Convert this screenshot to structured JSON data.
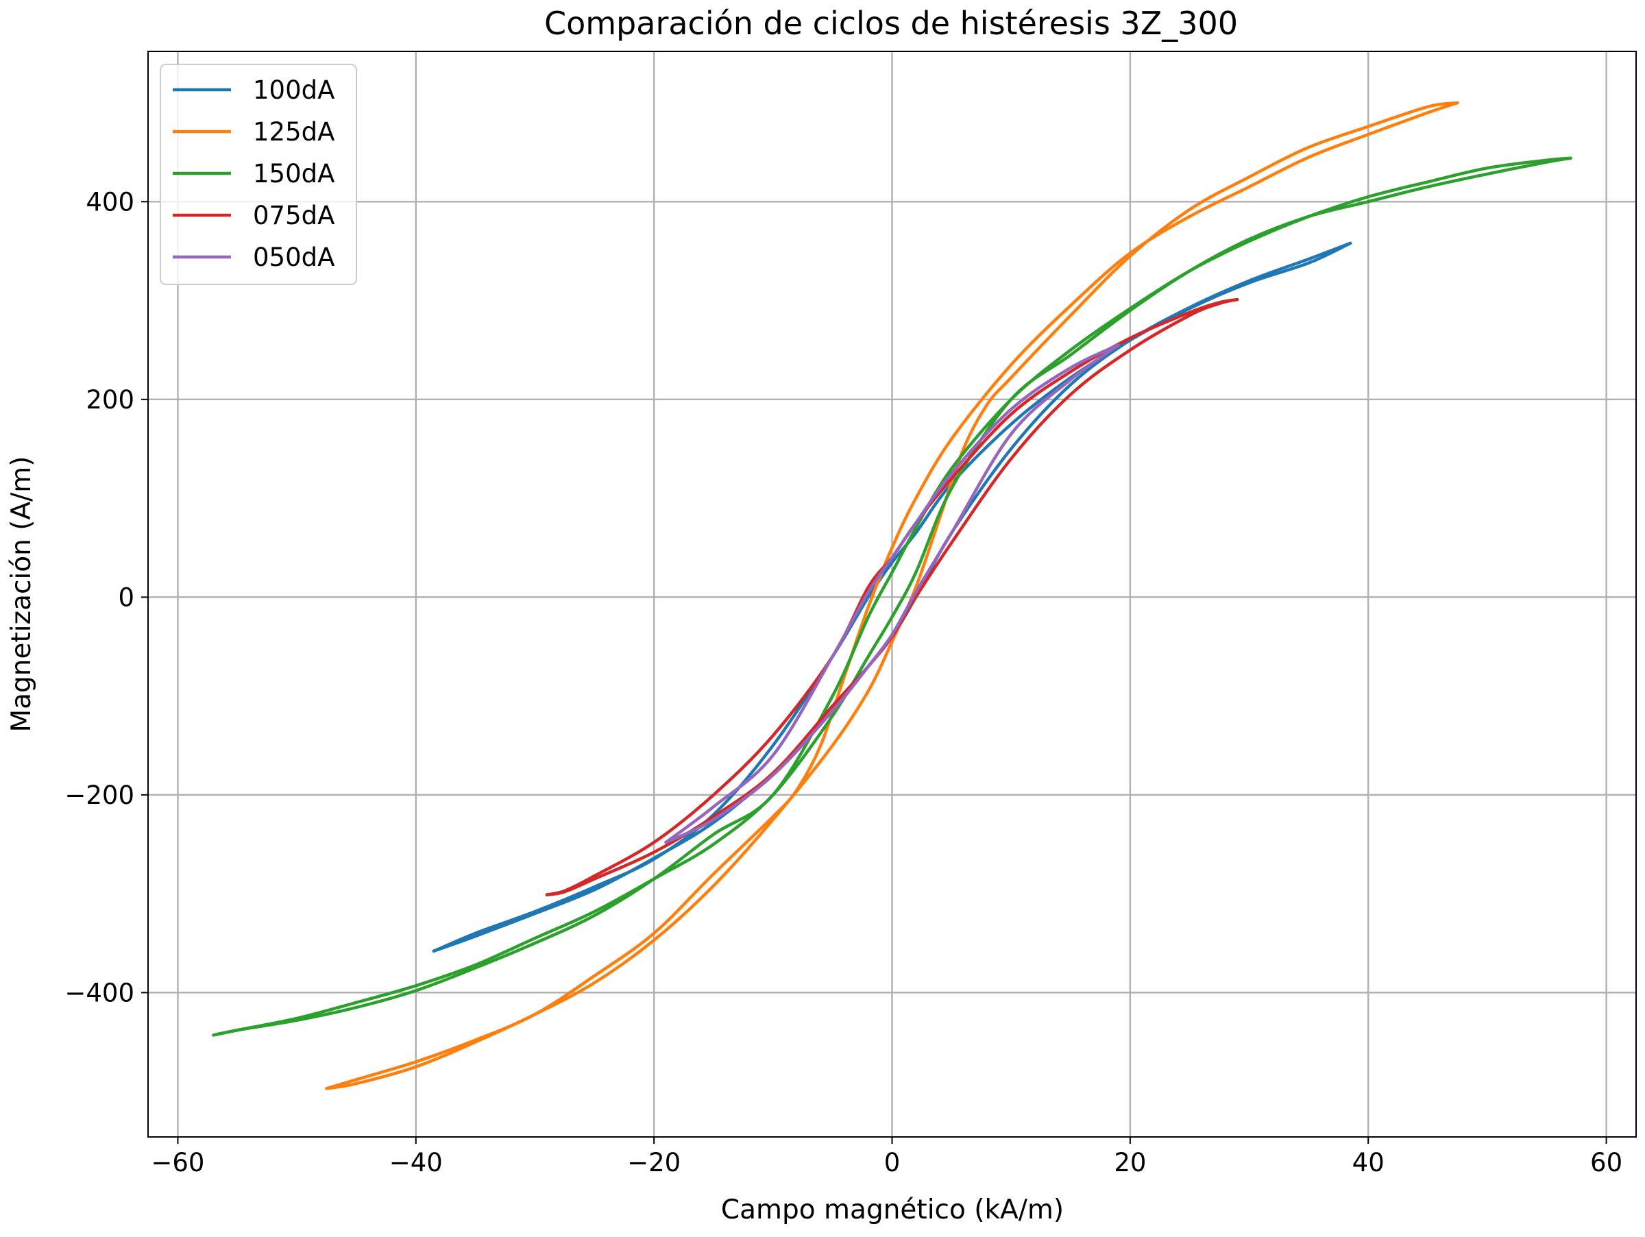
{
  "chart_data": {
    "type": "line",
    "title": "Comparación de ciclos de histéresis 3Z_300",
    "xlabel": "Campo magnético (kA/m)",
    "ylabel": "Magnetización (A/m)",
    "xlim": [
      -62.5,
      62.5
    ],
    "ylim": [
      -546,
      552
    ],
    "xticks": [
      -60,
      -40,
      -20,
      0,
      20,
      40,
      60
    ],
    "yticks": [
      -400,
      -200,
      0,
      200,
      400
    ],
    "grid": true,
    "legend_position": "upper left",
    "series": [
      {
        "name": "100dA",
        "color": "#1f77b4",
        "upper": {
          "x": [
            38.5,
            35,
            30,
            25,
            20,
            15,
            10,
            5,
            2,
            0,
            -2,
            -5,
            -10,
            -15,
            -20,
            -25,
            -30,
            -35,
            -38.5
          ],
          "y": [
            358,
            338,
            318,
            292,
            260,
            222,
            175,
            115,
            65,
            35,
            0,
            -60,
            -150,
            -220,
            -265,
            -293,
            -318,
            -340,
            -358
          ]
        },
        "lower": {
          "x": [
            -38.5,
            -35,
            -30,
            -25,
            -20,
            -15,
            -10,
            -5,
            -2,
            0,
            2,
            5,
            10,
            15,
            20,
            25,
            30,
            35,
            38.5
          ],
          "y": [
            -358,
            -343,
            -320,
            -296,
            -264,
            -228,
            -178,
            -115,
            -70,
            -40,
            0,
            65,
            150,
            215,
            260,
            293,
            320,
            342,
            358
          ]
        }
      },
      {
        "name": "125dA",
        "color": "#ff7f0e",
        "upper": {
          "x": [
            47.5,
            45,
            40,
            35,
            30,
            25,
            20,
            15,
            10,
            5,
            2,
            0,
            -2,
            -4,
            -6,
            -8,
            -10,
            -15,
            -20,
            -25,
            -30,
            -35,
            -40,
            -45,
            -47.5
          ],
          "y": [
            500,
            490,
            468,
            445,
            415,
            385,
            348,
            295,
            235,
            160,
            100,
            50,
            -10,
            -80,
            -150,
            -195,
            -222,
            -280,
            -340,
            -383,
            -422,
            -448,
            -470,
            -488,
            -497
          ]
        },
        "lower": {
          "x": [
            -47.5,
            -45,
            -40,
            -35,
            -30,
            -25,
            -20,
            -15,
            -10,
            -5,
            -2,
            0,
            2,
            4,
            6,
            8,
            10,
            15,
            20,
            25,
            30,
            35,
            40,
            45,
            47.5
          ],
          "y": [
            -497,
            -492,
            -475,
            -450,
            -422,
            -390,
            -347,
            -292,
            -225,
            -150,
            -95,
            -45,
            10,
            80,
            150,
            195,
            222,
            285,
            345,
            392,
            425,
            455,
            476,
            496,
            500
          ]
        }
      },
      {
        "name": "150dA",
        "color": "#2ca02c",
        "upper": {
          "x": [
            57,
            55,
            50,
            45,
            40,
            35,
            30,
            25,
            20,
            15,
            10,
            5,
            2,
            0,
            -2,
            -5,
            -10,
            -15,
            -20,
            -25,
            -30,
            -35,
            -40,
            -45,
            -50,
            -55,
            -57
          ],
          "y": [
            444,
            442,
            434,
            420,
            405,
            385,
            360,
            330,
            292,
            250,
            200,
            130,
            70,
            25,
            -20,
            -100,
            -200,
            -240,
            -285,
            -322,
            -350,
            -375,
            -398,
            -415,
            -428,
            -438,
            -443
          ]
        },
        "lower": {
          "x": [
            -57,
            -55,
            -50,
            -45,
            -40,
            -35,
            -30,
            -25,
            -20,
            -15,
            -10,
            -5,
            -2,
            0,
            2,
            5,
            10,
            15,
            20,
            25,
            30,
            35,
            40,
            45,
            50,
            55,
            57
          ],
          "y": [
            -443,
            -438,
            -426,
            -410,
            -393,
            -372,
            -345,
            -318,
            -285,
            -250,
            -200,
            -120,
            -60,
            -20,
            25,
            110,
            200,
            245,
            290,
            330,
            362,
            385,
            400,
            415,
            428,
            440,
            444
          ]
        }
      },
      {
        "name": "075dA",
        "color": "#d62728",
        "upper": {
          "x": [
            29,
            27.5,
            25,
            20,
            15,
            10,
            5,
            2,
            0,
            -2,
            -5,
            -10,
            -15,
            -20,
            -25,
            -27.5,
            -29
          ],
          "y": [
            301,
            298,
            288,
            262,
            228,
            185,
            120,
            75,
            40,
            10,
            -60,
            -140,
            -200,
            -248,
            -282,
            -297,
            -301
          ]
        },
        "lower": {
          "x": [
            -29,
            -27.5,
            -25,
            -20,
            -15,
            -10,
            -5,
            -2,
            0,
            2,
            5,
            10,
            15,
            20,
            25,
            27.5,
            29
          ],
          "y": [
            -301,
            -298,
            -285,
            -258,
            -222,
            -178,
            -110,
            -70,
            -40,
            0,
            55,
            140,
            205,
            250,
            285,
            297,
            301
          ]
        }
      },
      {
        "name": "050dA",
        "color": "#9467bd",
        "upper": {
          "x": [
            19,
            15,
            10,
            5,
            2,
            0,
            -2,
            -5,
            -10,
            -15,
            -19
          ],
          "y": [
            255,
            232,
            190,
            125,
            75,
            40,
            5,
            -60,
            -160,
            -212,
            -248
          ]
        },
        "lower": {
          "x": [
            -19,
            -15,
            -10,
            -5,
            -2,
            0,
            2,
            5,
            10,
            15,
            19
          ],
          "y": [
            -248,
            -225,
            -180,
            -115,
            -70,
            -38,
            5,
            65,
            165,
            220,
            255
          ]
        }
      }
    ]
  }
}
